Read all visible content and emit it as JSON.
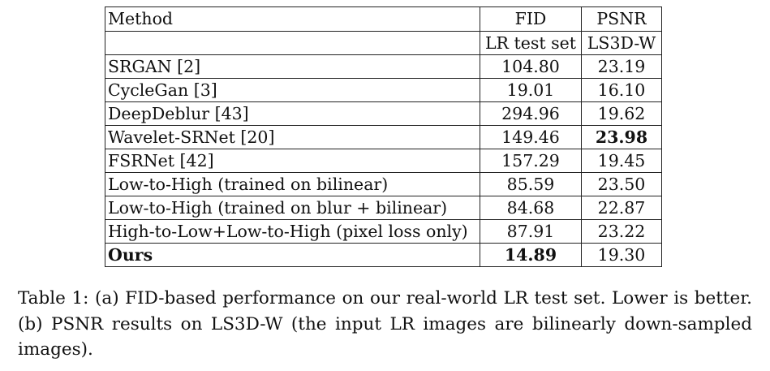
{
  "table": {
    "headers": {
      "method": "Method",
      "fid": "FID",
      "psnr": "PSNR",
      "fid_sub": "LR test set",
      "psnr_sub": "LS3D-W"
    },
    "rows": [
      {
        "method": "SRGAN [2]",
        "fid": "104.80",
        "psnr": "23.19"
      },
      {
        "method": "CycleGan [3]",
        "fid": "19.01",
        "psnr": "16.10"
      },
      {
        "method": "DeepDeblur [43]",
        "fid": "294.96",
        "psnr": "19.62"
      },
      {
        "method": "Wavelet-SRNet [20]",
        "fid": "149.46",
        "psnr": "23.98"
      },
      {
        "method": "FSRNet [42]",
        "fid": "157.29",
        "psnr": "19.45"
      },
      {
        "method": "Low-to-High (trained on bilinear)",
        "fid": "85.59",
        "psnr": "23.50"
      },
      {
        "method": "Low-to-High (trained on blur + bilinear)",
        "fid": "84.68",
        "psnr": "22.87"
      },
      {
        "method": "High-to-Low+Low-to-High (pixel loss only)",
        "fid": "87.91",
        "psnr": "23.22"
      },
      {
        "method": "Ours",
        "fid": "14.89",
        "psnr": "19.30"
      }
    ]
  },
  "caption": "Table 1: (a) FID-based performance on our real-world LR test set. Lower is better. (b) PSNR results on LS3D-W (the input LR images are bilinearly down-sampled images)."
}
